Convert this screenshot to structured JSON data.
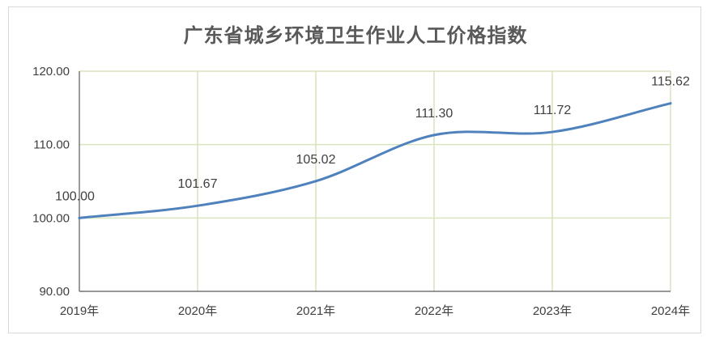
{
  "chart_data": {
    "type": "line",
    "title": "广东省城乡环境卫生作业人工价格指数",
    "categories": [
      "2019年",
      "2020年",
      "2021年",
      "2022年",
      "2023年",
      "2024年"
    ],
    "series": [
      {
        "values": [
          100.0,
          101.67,
          105.02,
          111.3,
          111.72,
          115.62
        ]
      }
    ],
    "data_labels": [
      "100.00",
      "101.67",
      "105.02",
      "111.30",
      "111.72",
      "115.62"
    ],
    "yticks": [
      "90.00",
      "100.00",
      "110.00",
      "120.00"
    ],
    "ylim": [
      90,
      120
    ],
    "xlabel": "",
    "ylabel": "",
    "grid": true,
    "line_color": "#4f81bd",
    "grid_color": "#d7e4bd"
  }
}
